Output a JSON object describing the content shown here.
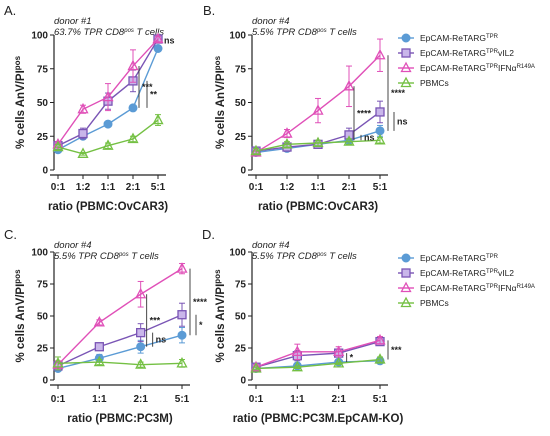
{
  "colors": {
    "EpCAM-ReTARG": "#5b9bd5",
    "EpCAM-ReTARG-vIL2": "#7a55b5",
    "EpCAM-ReTARG-IFNa": "#e050b8",
    "PBMCs": "#74c043"
  },
  "legend_top": [
    {
      "base": "EpCAM-ReTARG",
      "sup": "TPR",
      "tail": "",
      "tail_sup": "",
      "marker": "circle",
      "color": "#5b9bd5"
    },
    {
      "base": "EpCAM-ReTARG",
      "sup": "TPR",
      "tail": "vIL2",
      "tail_sup": "",
      "marker": "square",
      "color": "#7a55b5"
    },
    {
      "base": "EpCAM-ReTARG",
      "sup": "TPR",
      "tail": "IFNα",
      "tail_sup": "R149A",
      "marker": "triangle",
      "color": "#e050b8"
    },
    {
      "base": "PBMCs",
      "sup": "",
      "tail": "",
      "tail_sup": "",
      "marker": "triangle",
      "color": "#74c043"
    }
  ],
  "legend_bottom": [
    {
      "base": "EpCAM-ReTARG",
      "sup": "TPR",
      "tail": "",
      "tail_sup": "",
      "marker": "circle",
      "color": "#5b9bd5"
    },
    {
      "base": "EpCAM-ReTARG",
      "sup": "TPR",
      "tail": "vIL2",
      "tail_sup": "",
      "marker": "square",
      "color": "#7a55b5"
    },
    {
      "base": "EpCAM-ReTARG",
      "sup": "TPR",
      "tail": "IFNα",
      "tail_sup": "R149A",
      "marker": "triangle",
      "color": "#e050b8"
    },
    {
      "base": "PBMCs",
      "sup": "",
      "tail": "",
      "tail_sup": "",
      "marker": "triangle",
      "color": "#74c043"
    }
  ],
  "chart_data": [
    {
      "type": "line",
      "panel_letter": "A.",
      "donor": "donor #1",
      "subtitle_pre": "63.7% TPR CD8",
      "subtitle_sup": "pos",
      "subtitle_post": " T cells",
      "ylabel_pre": "% cells AnV/PI",
      "ylabel_sup": "pos",
      "xlabel": "ratio (PBMC:OvCAR3)",
      "categories": [
        "0:1",
        "1:2",
        "1:1",
        "2:1",
        "5:1"
      ],
      "yticks": [
        0,
        25,
        50,
        75,
        100
      ],
      "ylim": [
        0,
        100
      ],
      "series": [
        {
          "key": "EpCAM-ReTARG",
          "marker": "circle",
          "values": [
            15,
            25,
            34,
            46,
            90
          ],
          "errors": [
            1,
            2,
            1,
            2,
            2
          ]
        },
        {
          "key": "EpCAM-ReTARG-vIL2",
          "marker": "square",
          "values": [
            18,
            27,
            51,
            66,
            97
          ],
          "errors": [
            2,
            4,
            6,
            8,
            2
          ]
        },
        {
          "key": "EpCAM-ReTARG-IFNa",
          "marker": "triangle",
          "values": [
            19,
            45,
            54,
            77,
            97
          ],
          "errors": [
            2,
            3,
            10,
            12,
            2
          ]
        },
        {
          "key": "PBMCs",
          "marker": "triangle",
          "values": [
            17,
            12,
            18,
            23,
            37
          ],
          "errors": [
            2,
            1,
            2,
            2,
            4
          ]
        }
      ],
      "sig": [
        "***",
        "**",
        "ns"
      ]
    },
    {
      "type": "line",
      "panel_letter": "B.",
      "donor": "donor #4",
      "subtitle_pre": "5.5% TPR CD8",
      "subtitle_sup": "pos",
      "subtitle_post": " T cells",
      "ylabel_pre": "% cells AnV/PI",
      "ylabel_sup": "pos",
      "xlabel": "ratio (PBMC:OvCAR3)",
      "categories": [
        "0:1",
        "1:2",
        "1:1",
        "2:1",
        "5:1"
      ],
      "yticks": [
        0,
        25,
        50,
        75,
        100
      ],
      "ylim": [
        0,
        100
      ],
      "series": [
        {
          "key": "EpCAM-ReTARG",
          "marker": "circle",
          "values": [
            13,
            16,
            19,
            22,
            29
          ],
          "errors": [
            1,
            2,
            1,
            2,
            4
          ]
        },
        {
          "key": "EpCAM-ReTARG-vIL2",
          "marker": "square",
          "values": [
            14,
            17,
            19,
            26,
            43
          ],
          "errors": [
            2,
            3,
            2,
            5,
            8
          ]
        },
        {
          "key": "EpCAM-ReTARG-IFNa",
          "marker": "triangle",
          "values": [
            13,
            27,
            44,
            62,
            85
          ],
          "errors": [
            1,
            3,
            9,
            15,
            12
          ]
        },
        {
          "key": "PBMCs",
          "marker": "triangle",
          "values": [
            14,
            19,
            20,
            21,
            22
          ],
          "errors": [
            2,
            2,
            2,
            2,
            2
          ]
        }
      ],
      "sig": [
        "****",
        "****",
        "ns",
        "ns"
      ]
    },
    {
      "type": "line",
      "panel_letter": "C.",
      "donor": "donor #4",
      "subtitle_pre": "5.5% TPR CD8",
      "subtitle_sup": "pos",
      "subtitle_post": " T cells",
      "ylabel_pre": "% cells AnV/PI",
      "ylabel_sup": "pos",
      "xlabel": "ratio (PBMC:PC3M)",
      "categories": [
        "0:1",
        "1:1",
        "2:1",
        "5:1"
      ],
      "yticks": [
        0,
        25,
        50,
        75,
        100
      ],
      "ylim": [
        0,
        100
      ],
      "series": [
        {
          "key": "EpCAM-ReTARG",
          "marker": "circle",
          "values": [
            9,
            17,
            26,
            35
          ],
          "errors": [
            2,
            3,
            5,
            6
          ]
        },
        {
          "key": "EpCAM-ReTARG-vIL2",
          "marker": "square",
          "values": [
            11,
            26,
            37,
            51
          ],
          "errors": [
            3,
            3,
            7,
            9
          ]
        },
        {
          "key": "EpCAM-ReTARG-IFNa",
          "marker": "triangle",
          "values": [
            12,
            45,
            67,
            87
          ],
          "errors": [
            3,
            2,
            10,
            4
          ]
        },
        {
          "key": "PBMCs",
          "marker": "triangle",
          "values": [
            13,
            14,
            12,
            13
          ],
          "errors": [
            5,
            2,
            2,
            3
          ]
        }
      ],
      "sig": [
        "***",
        "ns",
        "****",
        "*"
      ]
    },
    {
      "type": "line",
      "panel_letter": "D.",
      "donor": "donor #4",
      "subtitle_pre": "5.5% TPR CD8",
      "subtitle_sup": "pos",
      "subtitle_post": " T cells",
      "ylabel_pre": "% cells AnV/PI",
      "ylabel_sup": "pos",
      "xlabel": "ratio (PBMC:PC3M.EpCAM-KO)",
      "categories": [
        "0:1",
        "1:1",
        "2:1",
        "5:1"
      ],
      "yticks": [
        0,
        25,
        50,
        75,
        100
      ],
      "ylim": [
        0,
        100
      ],
      "series": [
        {
          "key": "EpCAM-ReTARG",
          "marker": "circle",
          "values": [
            9,
            11,
            14,
            15
          ],
          "errors": [
            1,
            2,
            2,
            2
          ]
        },
        {
          "key": "EpCAM-ReTARG-vIL2",
          "marker": "square",
          "values": [
            10,
            19,
            21,
            30
          ],
          "errors": [
            2,
            4,
            3,
            3
          ]
        },
        {
          "key": "EpCAM-ReTARG-IFNa",
          "marker": "triangle",
          "values": [
            10,
            22,
            22,
            31
          ],
          "errors": [
            2,
            6,
            4,
            3
          ]
        },
        {
          "key": "PBMCs",
          "marker": "triangle",
          "values": [
            9,
            10,
            13,
            16
          ],
          "errors": [
            1,
            1,
            1,
            2
          ]
        }
      ],
      "sig": [
        "*",
        "***"
      ]
    }
  ]
}
